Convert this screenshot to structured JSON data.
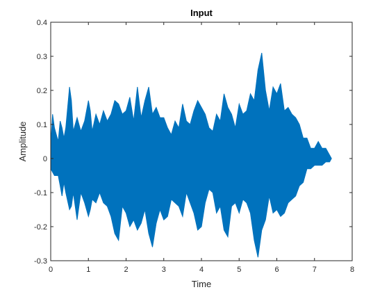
{
  "chart_data": {
    "type": "area",
    "title": "Input",
    "xlabel": "Time",
    "ylabel": "Amplitude",
    "xlim": [
      0,
      8
    ],
    "ylim": [
      -0.3,
      0.4
    ],
    "xticks": [
      "0",
      "1",
      "2",
      "3",
      "4",
      "5",
      "6",
      "7",
      "8"
    ],
    "yticks": [
      "-0.3",
      "-0.2",
      "-0.1",
      "0",
      "0.1",
      "0.2",
      "0.3",
      "0.4"
    ],
    "grid": false,
    "legend": "none",
    "series": [
      {
        "color": "#0072BD",
        "x": [
          0.0,
          0.05,
          0.1,
          0.2,
          0.25,
          0.3,
          0.35,
          0.4,
          0.5,
          0.55,
          0.6,
          0.7,
          0.8,
          0.9,
          1.0,
          1.05,
          1.1,
          1.2,
          1.3,
          1.4,
          1.5,
          1.6,
          1.7,
          1.8,
          1.9,
          2.0,
          2.1,
          2.2,
          2.3,
          2.4,
          2.5,
          2.6,
          2.7,
          2.8,
          2.9,
          3.0,
          3.1,
          3.2,
          3.3,
          3.4,
          3.5,
          3.6,
          3.7,
          3.8,
          3.9,
          4.0,
          4.1,
          4.2,
          4.3,
          4.4,
          4.5,
          4.6,
          4.7,
          4.8,
          4.9,
          5.0,
          5.1,
          5.2,
          5.3,
          5.4,
          5.5,
          5.6,
          5.7,
          5.8,
          5.9,
          6.0,
          6.1,
          6.2,
          6.3,
          6.4,
          6.5,
          6.6,
          6.7,
          6.8,
          6.9,
          7.0,
          7.1,
          7.2,
          7.3,
          7.4,
          7.45
        ],
        "upper": [
          0.04,
          0.13,
          0.09,
          0.05,
          0.11,
          0.09,
          0.06,
          0.09,
          0.21,
          0.17,
          0.08,
          0.12,
          0.08,
          0.11,
          0.17,
          0.14,
          0.08,
          0.13,
          0.1,
          0.14,
          0.11,
          0.13,
          0.17,
          0.16,
          0.13,
          0.14,
          0.18,
          0.11,
          0.21,
          0.12,
          0.17,
          0.21,
          0.13,
          0.15,
          0.12,
          0.12,
          0.09,
          0.07,
          0.11,
          0.09,
          0.16,
          0.11,
          0.1,
          0.14,
          0.17,
          0.15,
          0.13,
          0.09,
          0.08,
          0.13,
          0.11,
          0.19,
          0.15,
          0.13,
          0.09,
          0.16,
          0.13,
          0.14,
          0.19,
          0.17,
          0.26,
          0.31,
          0.2,
          0.14,
          0.21,
          0.19,
          0.22,
          0.14,
          0.15,
          0.13,
          0.12,
          0.1,
          0.06,
          0.06,
          0.03,
          0.03,
          0.05,
          0.03,
          0.03,
          0.01,
          0.0
        ],
        "lower": [
          -0.03,
          -0.04,
          -0.05,
          -0.05,
          -0.08,
          -0.11,
          -0.07,
          -0.1,
          -0.15,
          -0.14,
          -0.1,
          -0.18,
          -0.1,
          -0.13,
          -0.17,
          -0.15,
          -0.12,
          -0.13,
          -0.1,
          -0.13,
          -0.14,
          -0.17,
          -0.22,
          -0.24,
          -0.14,
          -0.16,
          -0.2,
          -0.18,
          -0.21,
          -0.19,
          -0.15,
          -0.22,
          -0.26,
          -0.19,
          -0.15,
          -0.18,
          -0.17,
          -0.12,
          -0.13,
          -0.14,
          -0.17,
          -0.1,
          -0.13,
          -0.16,
          -0.21,
          -0.2,
          -0.13,
          -0.09,
          -0.1,
          -0.16,
          -0.14,
          -0.21,
          -0.23,
          -0.14,
          -0.13,
          -0.16,
          -0.12,
          -0.13,
          -0.16,
          -0.24,
          -0.29,
          -0.21,
          -0.18,
          -0.11,
          -0.16,
          -0.15,
          -0.17,
          -0.16,
          -0.13,
          -0.12,
          -0.11,
          -0.08,
          -0.07,
          -0.03,
          -0.03,
          -0.02,
          -0.02,
          -0.02,
          -0.01,
          -0.01,
          0.0
        ]
      }
    ]
  }
}
